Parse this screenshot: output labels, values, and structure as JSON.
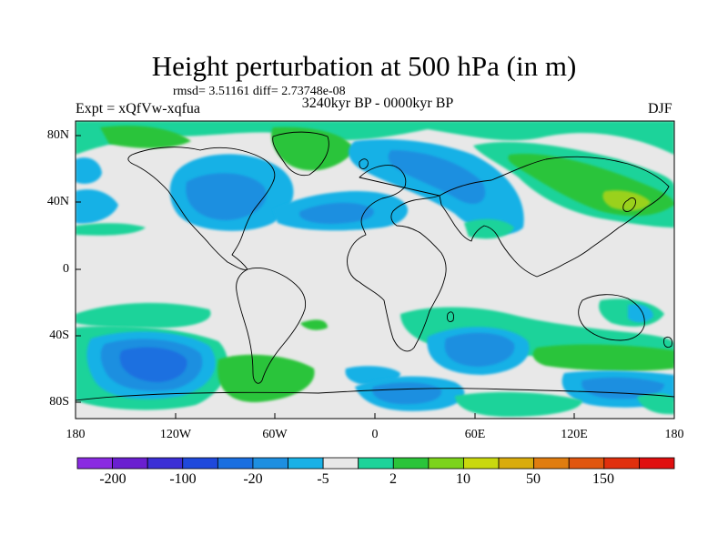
{
  "title": "Height perturbation at 500 hPa (in m)",
  "stats": "rmsd= 3.51161 diff= 2.73748e-08",
  "experiment": "Expt = xQfVw-xqfua",
  "period": "3240kyr BP - 0000kyr BP",
  "season": "DJF",
  "latitude_labels": [
    "80N",
    "40N",
    "0",
    "40S",
    "80S"
  ],
  "longitude_labels": [
    "180",
    "120W",
    "60W",
    "0",
    "60E",
    "120E",
    "180"
  ],
  "colorbar": {
    "labels": [
      "-200",
      "-100",
      "-20",
      "-5",
      "2",
      "10",
      "50",
      "150"
    ],
    "colors": [
      "#8a2be2",
      "#6a1fd0",
      "#3c2fd6",
      "#1f49dc",
      "#1a6fe0",
      "#1e8fe0",
      "#19b1e6",
      "#e8e8e8",
      "#1ed39a",
      "#2bc43a",
      "#7cd31b",
      "#c9d80e",
      "#d9ac0d",
      "#e07d10",
      "#e0560f",
      "#e0300e",
      "#e01010"
    ]
  },
  "map_colors": {
    "ocean": "#e8e8e8",
    "blue_dark": "#1a6fe0",
    "blue_mid": "#1e8fe0",
    "blue_light": "#19b1e6",
    "green_light": "#1ed39a",
    "green": "#2bc43a",
    "yellow_green": "#9ad11a"
  }
}
